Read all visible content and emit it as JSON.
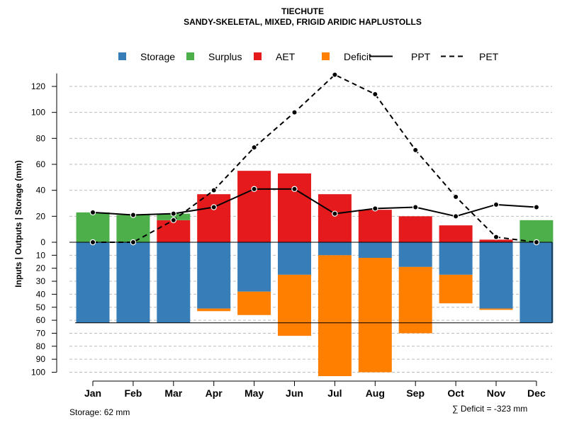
{
  "chart_data": {
    "type": "bar",
    "title": "TIECHUTE",
    "subtitle": "SANDY-SKELETAL, MIXED, FRIGID ARIDIC HAPLUSTOLLS",
    "ylabel": "Inputs | Outputs | Storage     (mm)",
    "categories": [
      "Jan",
      "Feb",
      "Mar",
      "Apr",
      "May",
      "Jun",
      "Jul",
      "Aug",
      "Sep",
      "Oct",
      "Nov",
      "Dec"
    ],
    "legend": {
      "placement": "top",
      "items": [
        {
          "label": "Storage",
          "kind": "square",
          "color": "#377EB8"
        },
        {
          "label": "Surplus",
          "kind": "square",
          "color": "#4DAF4A"
        },
        {
          "label": "AET",
          "kind": "square",
          "color": "#E41A1C"
        },
        {
          "label": "Deficit",
          "kind": "square",
          "color": "#FF7F00"
        },
        {
          "label": "PPT",
          "kind": "line-solid",
          "color": "#000000"
        },
        {
          "label": "PET",
          "kind": "line-dashed",
          "color": "#000000"
        }
      ]
    },
    "upper_axis": {
      "ylim": [
        0,
        130
      ],
      "ticks": [
        0,
        20,
        40,
        60,
        80,
        100,
        120
      ]
    },
    "lower_axis": {
      "ylim": [
        0,
        100
      ],
      "ticks": [
        0,
        10,
        20,
        30,
        40,
        50,
        60,
        70,
        80,
        90,
        100
      ],
      "inverted": true
    },
    "series": [
      {
        "name": "AET",
        "color": "#E41A1C",
        "values": [
          0,
          0,
          17,
          37,
          55,
          53,
          37,
          25,
          20,
          13,
          2,
          0
        ]
      },
      {
        "name": "Surplus",
        "color": "#4DAF4A",
        "values": [
          23,
          21,
          5,
          0,
          0,
          0,
          0,
          0,
          0,
          0,
          0,
          17
        ]
      },
      {
        "name": "Storage",
        "color": "#377EB8",
        "values": [
          62,
          62,
          62,
          51,
          38,
          25,
          10,
          12,
          19,
          25,
          51,
          62
        ]
      },
      {
        "name": "Deficit",
        "color": "#FF7F00",
        "values": [
          0,
          0,
          0,
          2,
          18,
          47,
          93,
          88,
          51,
          22,
          1,
          0
        ]
      },
      {
        "name": "PPT",
        "color": "#000000",
        "values": [
          23,
          21,
          22,
          27,
          41,
          41,
          22,
          26,
          27,
          20,
          29,
          27
        ]
      },
      {
        "name": "PET",
        "color": "#000000",
        "values": [
          0,
          0,
          17,
          40,
          73,
          100,
          129,
          114,
          71,
          35,
          4,
          0
        ]
      }
    ],
    "storage_capacity": 62
  },
  "footer": {
    "storage": "Storage: 62 mm",
    "deficit": "∑ Deficit = -323 mm"
  }
}
